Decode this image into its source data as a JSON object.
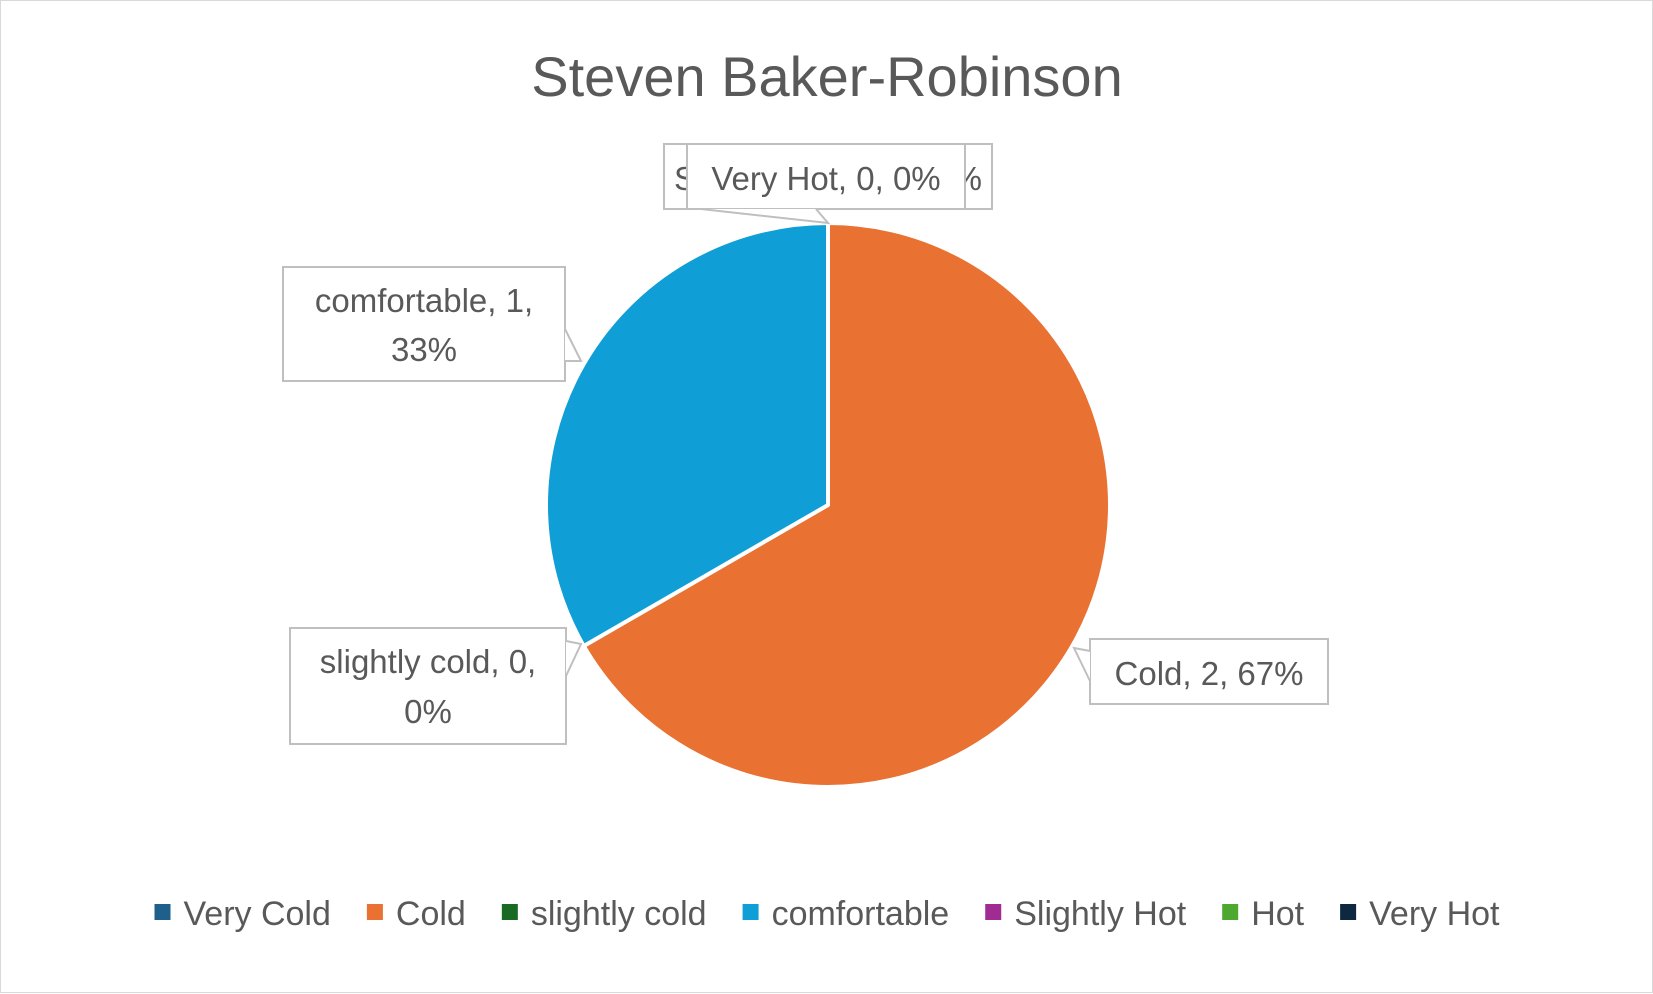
{
  "chart_data": {
    "type": "pie",
    "title": "Steven Baker-Robinson",
    "categories": [
      "Very Cold",
      "Cold",
      "slightly cold",
      "comfortable",
      "Slightly Hot",
      "Hot",
      "Very Hot"
    ],
    "values": [
      0,
      2,
      0,
      1,
      0,
      0,
      0
    ],
    "percentages": [
      "0%",
      "67%",
      "0%",
      "33%",
      "0%",
      "0%",
      "0%"
    ],
    "colors": [
      "#1f5f8b",
      "#e97132",
      "#196b24",
      "#0f9ed5",
      "#a02b93",
      "#4ea72e",
      "#0e2841"
    ],
    "data_labels": {
      "Cold": [
        "Cold, 2, 67%"
      ],
      "comfortable": [
        "comfortable, 1,",
        "33%"
      ],
      "slightly cold": [
        "slightly cold, 0,",
        "0%"
      ],
      "Very Hot": [
        "Very Hot, 0, 0%"
      ],
      "Slightly Hot (obscured)": [
        "S",
        "%"
      ]
    },
    "legend_position": "bottom"
  }
}
